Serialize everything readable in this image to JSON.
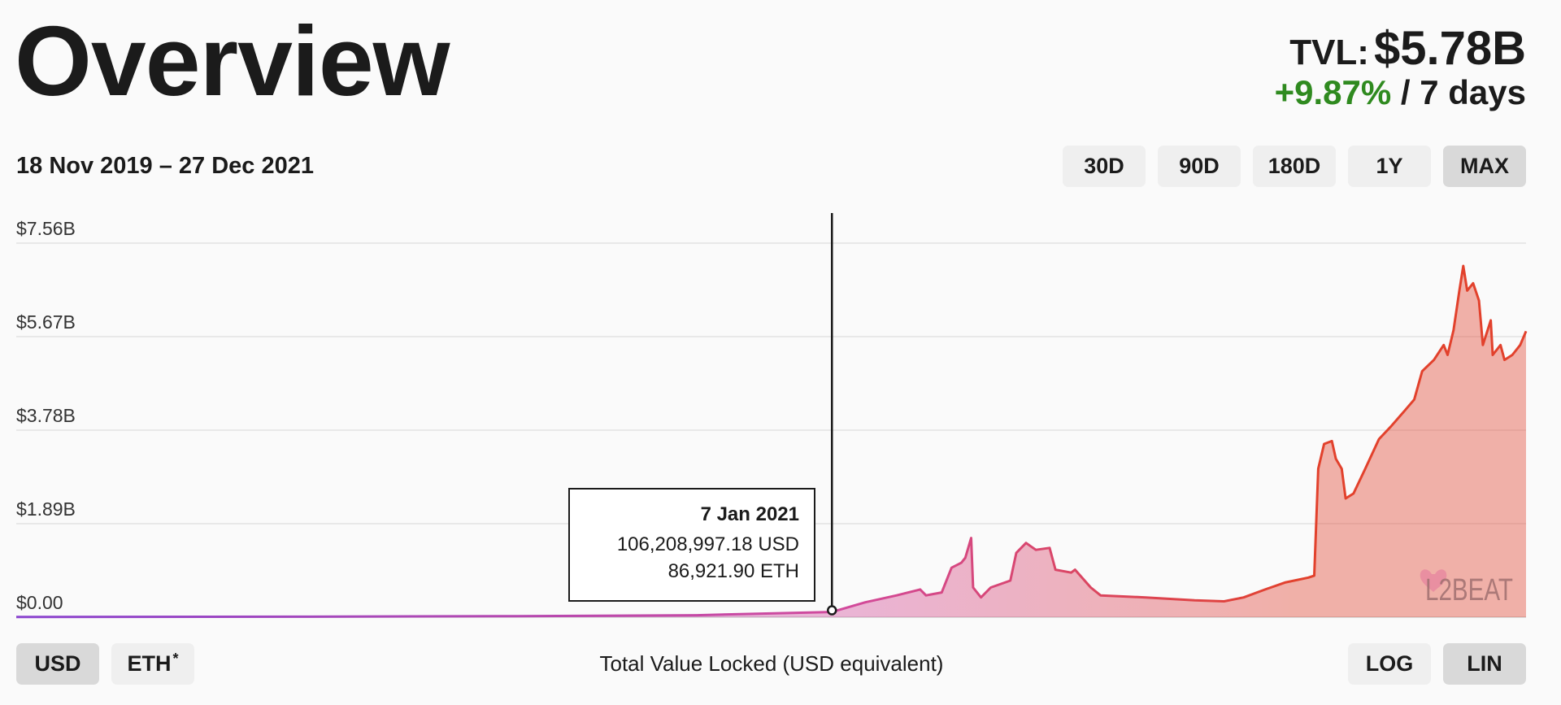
{
  "header": {
    "title": "Overview",
    "tvl_label": "TVL:",
    "tvl_value": "$5.78B",
    "change_pct": "+9.87%",
    "change_period": "/ 7 days",
    "date_range": "18 Nov 2019 – 27 Dec 2021"
  },
  "range_buttons": [
    {
      "label": "30D",
      "selected": false
    },
    {
      "label": "90D",
      "selected": false
    },
    {
      "label": "180D",
      "selected": false
    },
    {
      "label": "1Y",
      "selected": false
    },
    {
      "label": "MAX",
      "selected": true
    }
  ],
  "currency_buttons": [
    {
      "label": "USD",
      "selected": true
    },
    {
      "label": "ETH",
      "sup": "*",
      "selected": false
    }
  ],
  "scale_buttons": [
    {
      "label": "LOG",
      "selected": false
    },
    {
      "label": "LIN",
      "selected": true
    }
  ],
  "tooltip": {
    "date": "7 Jan 2021",
    "usd": "106,208,997.18 USD",
    "eth": "86,921.90 ETH"
  },
  "logo_text": "L2BEAT",
  "colors": {
    "positive": "#2f8a1f",
    "line_start": "#8a45cf",
    "line_mid": "#d24a9c",
    "line_end": "#e2412c"
  },
  "chart_data": {
    "type": "area",
    "title": "Total Value Locked (USD equivalent)",
    "xlabel": "",
    "ylabel": "",
    "x_unit": "days since 18 Nov 2019",
    "xlim": [
      0,
      770
    ],
    "ylim": [
      0,
      7.56
    ],
    "y_unit": "billion USD",
    "y_tick_values": [
      0,
      1.89,
      3.78,
      5.67,
      7.56
    ],
    "y_tick_labels": [
      "$0.00",
      "$1.89B",
      "$3.78B",
      "$5.67B",
      "$7.56B"
    ],
    "grid": true,
    "legend": "none",
    "hover": {
      "x": 416,
      "y": 0.106
    },
    "series": [
      {
        "name": "TVL",
        "points": [
          [
            0,
            0.005
          ],
          [
            144,
            0.01
          ],
          [
            246,
            0.02
          ],
          [
            347,
            0.04
          ],
          [
            378,
            0.07
          ],
          [
            416,
            0.106
          ],
          [
            433,
            0.3
          ],
          [
            449,
            0.44
          ],
          [
            461,
            0.56
          ],
          [
            464,
            0.44
          ],
          [
            472,
            0.5
          ],
          [
            477,
            1.0
          ],
          [
            482,
            1.1
          ],
          [
            484,
            1.2
          ],
          [
            487,
            1.6
          ],
          [
            488,
            0.6
          ],
          [
            492,
            0.4
          ],
          [
            497,
            0.6
          ],
          [
            507,
            0.74
          ],
          [
            510,
            1.3
          ],
          [
            515,
            1.5
          ],
          [
            520,
            1.36
          ],
          [
            527,
            1.4
          ],
          [
            530,
            0.96
          ],
          [
            538,
            0.9
          ],
          [
            540,
            0.96
          ],
          [
            548,
            0.6
          ],
          [
            553,
            0.44
          ],
          [
            576,
            0.4
          ],
          [
            601,
            0.34
          ],
          [
            616,
            0.32
          ],
          [
            626,
            0.4
          ],
          [
            637,
            0.56
          ],
          [
            647,
            0.7
          ],
          [
            659,
            0.8
          ],
          [
            662,
            0.84
          ],
          [
            664,
            3.0
          ],
          [
            667,
            3.5
          ],
          [
            671,
            3.56
          ],
          [
            673,
            3.2
          ],
          [
            676,
            3.0
          ],
          [
            678,
            2.4
          ],
          [
            682,
            2.5
          ],
          [
            688,
            3.0
          ],
          [
            695,
            3.6
          ],
          [
            701,
            3.85
          ],
          [
            708,
            4.17
          ],
          [
            713,
            4.4
          ],
          [
            717,
            4.97
          ],
          [
            723,
            5.2
          ],
          [
            728,
            5.5
          ],
          [
            730,
            5.3
          ],
          [
            733,
            5.8
          ],
          [
            736,
            6.6
          ],
          [
            738,
            7.1
          ],
          [
            740,
            6.6
          ],
          [
            743,
            6.75
          ],
          [
            746,
            6.4
          ],
          [
            748,
            5.5
          ],
          [
            752,
            6.0
          ],
          [
            753,
            5.3
          ],
          [
            757,
            5.5
          ],
          [
            759,
            5.2
          ],
          [
            763,
            5.3
          ],
          [
            767,
            5.5
          ],
          [
            770,
            5.78
          ]
        ]
      }
    ]
  }
}
